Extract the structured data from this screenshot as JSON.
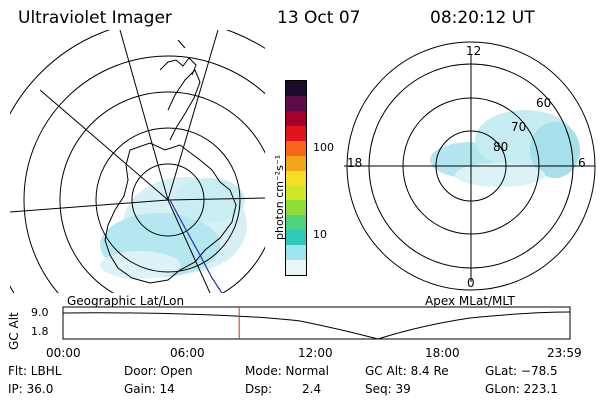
{
  "header": {
    "instrument": "Ultraviolet Imager",
    "date": "13 Oct 07",
    "time": "08:20:12 UT"
  },
  "left_map": {
    "caption": "Geographic Lat/Lon"
  },
  "right_map": {
    "caption": "Apex MLat/MLT",
    "mlt_labels": {
      "top": "12",
      "left": "18",
      "right": "6",
      "bottom": "0"
    },
    "lat_labels": [
      "60",
      "70",
      "80"
    ]
  },
  "colorbar": {
    "unit": "photon cm⁻²s⁻¹",
    "ticks": [
      "100",
      "10"
    ],
    "colors": [
      "#1b0b2a",
      "#5e0a4a",
      "#a4002a",
      "#e1141b",
      "#f5661c",
      "#f3a51a",
      "#f6dd27",
      "#cfe726",
      "#8fdc38",
      "#4fd27c",
      "#30c9b9",
      "#9fe5ef",
      "#e8f6f8"
    ]
  },
  "timeline": {
    "ylabel": "GC Alt",
    "ymax": "9.0",
    "ymin": "1.8",
    "x_ticks": [
      "00:00",
      "06:00",
      "12:00",
      "18:00",
      "23:59"
    ],
    "current_hour": 8.34,
    "marker_color": "#d03020"
  },
  "footer": {
    "filter": "Flt: LBHL",
    "ip": "IP: 36.0",
    "door": "Door: Open",
    "gain": "Gain: 14",
    "mode": "Mode: Normal",
    "dsp_label": "Dsp:",
    "dsp_value": "2.4",
    "gc_alt": "GC Alt: 8.4 Re",
    "seq": "Seq: 39",
    "glat": "GLat: −78.5",
    "glon": "GLon: 223.1"
  },
  "colors": {
    "aurora": "#7fdce8",
    "aurora_light": "#c9eef3",
    "track": "#2030c0"
  }
}
